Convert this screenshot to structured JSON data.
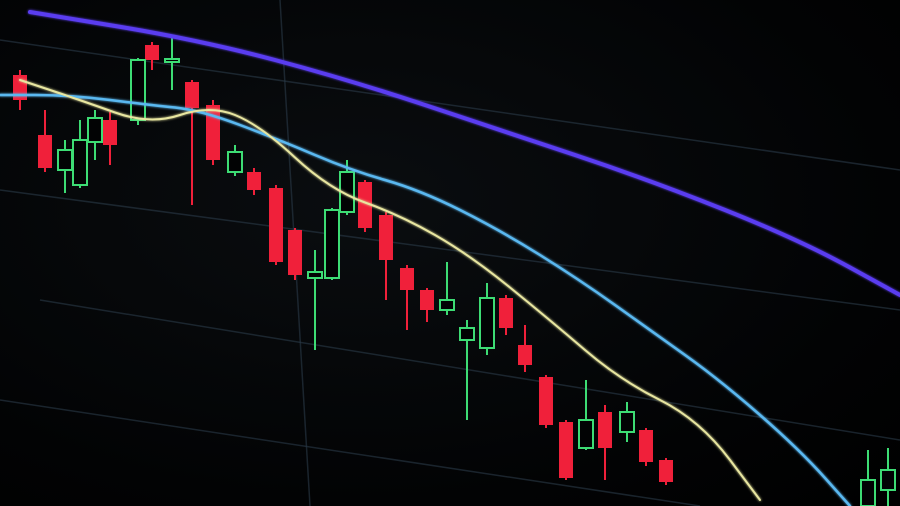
{
  "colors": {
    "bearish_candle": "#f0203a",
    "bullish_candle": "#3ddc74",
    "moving_average_long": "#5a3cf0",
    "moving_average_mid": "#5ab8f0",
    "moving_average_short": "#e8e6a0",
    "grid": "#2a3a48",
    "background": "#020304"
  }
}
